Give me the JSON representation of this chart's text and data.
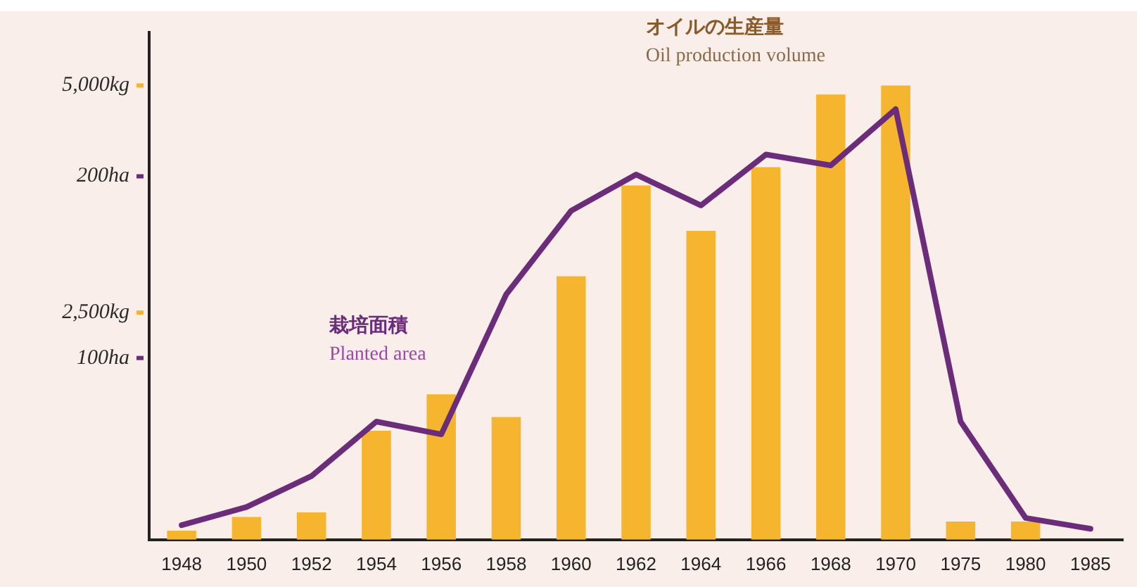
{
  "chart_data": {
    "type": "bar",
    "categories": [
      "1948",
      "1950",
      "1952",
      "1954",
      "1956",
      "1958",
      "1960",
      "1962",
      "1964",
      "1966",
      "1968",
      "1970",
      "1975",
      "1980",
      "1985"
    ],
    "series": [
      {
        "name": "オイルの生産量\nOil production volume",
        "axis": "y",
        "color": "#f5b52e",
        "values": [
          100,
          250,
          300,
          1200,
          1600,
          1350,
          2900,
          3900,
          3400,
          4100,
          4900,
          5000,
          200,
          200,
          null
        ]
      },
      {
        "name": "栽培面積\nPlanted area",
        "type": "line",
        "axis": "y2",
        "color": "#6b2c7a",
        "values": [
          8,
          18,
          35,
          65,
          58,
          135,
          181,
          201,
          184,
          212,
          206,
          237,
          65,
          12,
          6
        ]
      }
    ],
    "ylim": [
      0,
      5600
    ],
    "yticks": [
      {
        "value": 2500,
        "label": "2,500kg"
      },
      {
        "value": 5000,
        "label": "5,000kg"
      }
    ],
    "y2lim": [
      0,
      280
    ],
    "y2ticks": [
      {
        "value": 100,
        "label": "100ha"
      },
      {
        "value": 200,
        "label": "200ha"
      }
    ]
  }
}
